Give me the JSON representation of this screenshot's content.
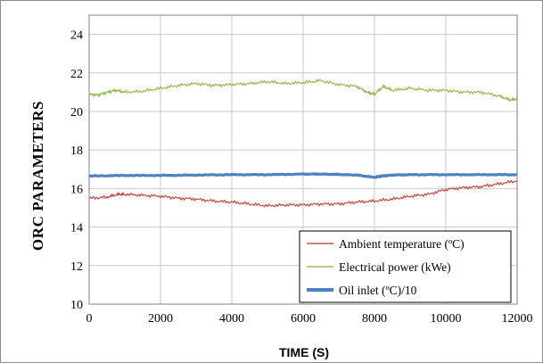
{
  "chart_data": {
    "type": "line",
    "title": "",
    "xlabel": "TIME (S)",
    "ylabel": "ORC PARAMETERS",
    "xlim": [
      0,
      12000
    ],
    "ylim": [
      10,
      25
    ],
    "x_ticks": [
      0,
      2000,
      4000,
      6000,
      8000,
      10000,
      12000
    ],
    "y_ticks": [
      10,
      12,
      14,
      16,
      18,
      20,
      22,
      24
    ],
    "grid": true,
    "legend_position": "bottom-right",
    "series": [
      {
        "name": "Ambient temperature (ºC)",
        "color": "#c0504d",
        "line_width": "thin",
        "x": [
          0,
          500,
          800,
          1000,
          1500,
          2000,
          2500,
          3000,
          3500,
          4000,
          4500,
          5000,
          5500,
          6000,
          6500,
          7000,
          7500,
          8000,
          8500,
          9000,
          9500,
          10000,
          10500,
          11000,
          11500,
          12000
        ],
        "y": [
          15.5,
          15.55,
          15.7,
          15.7,
          15.65,
          15.6,
          15.5,
          15.45,
          15.35,
          15.3,
          15.2,
          15.1,
          15.15,
          15.15,
          15.2,
          15.2,
          15.3,
          15.35,
          15.45,
          15.6,
          15.7,
          15.95,
          16.05,
          16.1,
          16.25,
          16.4
        ]
      },
      {
        "name": "Electrical power (kWe)",
        "color": "#9bbb59",
        "line_width": "thin",
        "x": [
          0,
          250,
          500,
          750,
          1000,
          1500,
          2000,
          2500,
          3000,
          3500,
          4000,
          4500,
          5000,
          5500,
          6000,
          6500,
          7000,
          7500,
          7800,
          8000,
          8250,
          8500,
          9000,
          9500,
          10000,
          10500,
          11000,
          11500,
          11800,
          12000
        ],
        "y": [
          20.9,
          20.85,
          21.0,
          21.1,
          21.0,
          21.05,
          21.2,
          21.35,
          21.45,
          21.35,
          21.4,
          21.45,
          21.55,
          21.45,
          21.5,
          21.6,
          21.4,
          21.3,
          21.0,
          20.9,
          21.3,
          21.1,
          21.2,
          21.1,
          21.1,
          21.0,
          21.0,
          20.8,
          20.6,
          20.65
        ]
      },
      {
        "name": "Oil inlet (ºC)/10",
        "color": "#4f81bd",
        "line_width": "thick",
        "x": [
          0,
          1000,
          2000,
          3000,
          4000,
          5000,
          6000,
          6500,
          7000,
          7500,
          8000,
          8200,
          8500,
          9000,
          10000,
          11000,
          12000
        ],
        "y": [
          16.65,
          16.68,
          16.68,
          16.7,
          16.72,
          16.72,
          16.75,
          16.75,
          16.73,
          16.7,
          16.58,
          16.65,
          16.7,
          16.72,
          16.72,
          16.72,
          16.72
        ]
      }
    ]
  }
}
